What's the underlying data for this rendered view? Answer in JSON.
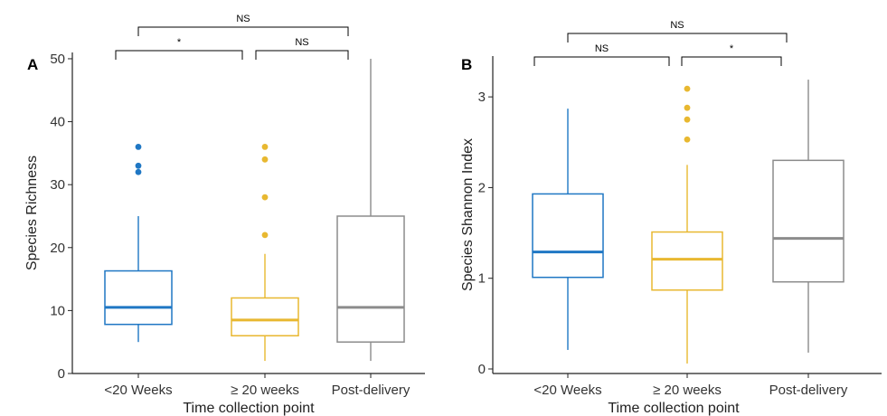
{
  "chart_data": [
    {
      "type": "box",
      "panel_label": "A",
      "xlabel": "Time collection point",
      "ylabel": "Species Richness",
      "categories": [
        "<20 Weeks",
        "≥ 20 weeks",
        "Post-delivery"
      ],
      "ylim": [
        0,
        51
      ],
      "yticks": [
        0,
        10,
        20,
        30,
        40,
        50
      ],
      "boxes": [
        {
          "category": "<20 Weeks",
          "color": "#1f77c4",
          "whisker_low": 5,
          "q1": 7.8,
          "median": 10.5,
          "q3": 16.3,
          "whisker_high": 25,
          "outliers": [
            32,
            33,
            36
          ]
        },
        {
          "category": "≥ 20 weeks",
          "color": "#e8b830",
          "whisker_low": 2,
          "q1": 6,
          "median": 8.5,
          "q3": 12,
          "whisker_high": 19,
          "outliers": [
            22,
            28,
            34,
            36
          ]
        },
        {
          "category": "Post-delivery",
          "color": "#8c8c8c",
          "whisker_low": 2,
          "q1": 5,
          "median": 10.5,
          "q3": 25,
          "whisker_high": 50,
          "outliers": []
        }
      ],
      "comparisons": [
        {
          "from": 0,
          "to": 1,
          "label": "*"
        },
        {
          "from": 1,
          "to": 2,
          "label": "NS"
        },
        {
          "from": 0,
          "to": 2,
          "label": "NS"
        }
      ]
    },
    {
      "type": "box",
      "panel_label": "B",
      "xlabel": "Time collection point",
      "ylabel": "Species Shannon Index",
      "categories": [
        "<20 Weeks",
        "≥ 20 weeks",
        "Post-delivery"
      ],
      "ylim": [
        -0.05,
        3.45
      ],
      "yticks": [
        0,
        1,
        2,
        3
      ],
      "boxes": [
        {
          "category": "<20 Weeks",
          "color": "#1f77c4",
          "whisker_low": 0.21,
          "q1": 1.01,
          "median": 1.29,
          "q3": 1.93,
          "whisker_high": 2.87,
          "outliers": []
        },
        {
          "category": "≥ 20 weeks",
          "color": "#e8b830",
          "whisker_low": 0.06,
          "q1": 0.87,
          "median": 1.21,
          "q3": 1.51,
          "whisker_high": 2.25,
          "outliers": [
            2.53,
            2.75,
            2.88,
            3.09
          ]
        },
        {
          "category": "Post-delivery",
          "color": "#8c8c8c",
          "whisker_low": 0.18,
          "q1": 0.96,
          "median": 1.44,
          "q3": 2.3,
          "whisker_high": 3.19,
          "outliers": []
        }
      ],
      "comparisons": [
        {
          "from": 0,
          "to": 1,
          "label": "NS"
        },
        {
          "from": 1,
          "to": 2,
          "label": "*"
        },
        {
          "from": 0,
          "to": 2,
          "label": "NS"
        }
      ]
    }
  ]
}
